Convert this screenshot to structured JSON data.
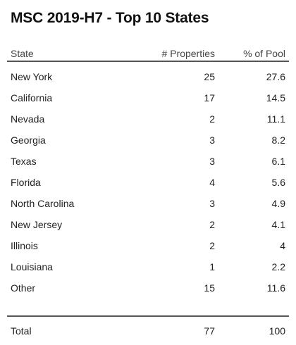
{
  "title": "MSC 2019-H7 - Top 10 States",
  "columns": {
    "state": "State",
    "properties": "# Properties",
    "pool": "% of Pool"
  },
  "rows": [
    {
      "state": "New York",
      "properties": "25",
      "pool": "27.6"
    },
    {
      "state": "California",
      "properties": "17",
      "pool": "14.5"
    },
    {
      "state": "Nevada",
      "properties": "2",
      "pool": "11.1"
    },
    {
      "state": "Georgia",
      "properties": "3",
      "pool": "8.2"
    },
    {
      "state": "Texas",
      "properties": "3",
      "pool": "6.1"
    },
    {
      "state": "Florida",
      "properties": "4",
      "pool": "5.6"
    },
    {
      "state": "North Carolina",
      "properties": "3",
      "pool": "4.9"
    },
    {
      "state": "New Jersey",
      "properties": "2",
      "pool": "4.1"
    },
    {
      "state": "Illinois",
      "properties": "2",
      "pool": "4"
    },
    {
      "state": "Louisiana",
      "properties": "1",
      "pool": "2.2"
    },
    {
      "state": "Other",
      "properties": "15",
      "pool": "11.6"
    }
  ],
  "total": {
    "label": "Total",
    "properties": "77",
    "pool": "100"
  }
}
